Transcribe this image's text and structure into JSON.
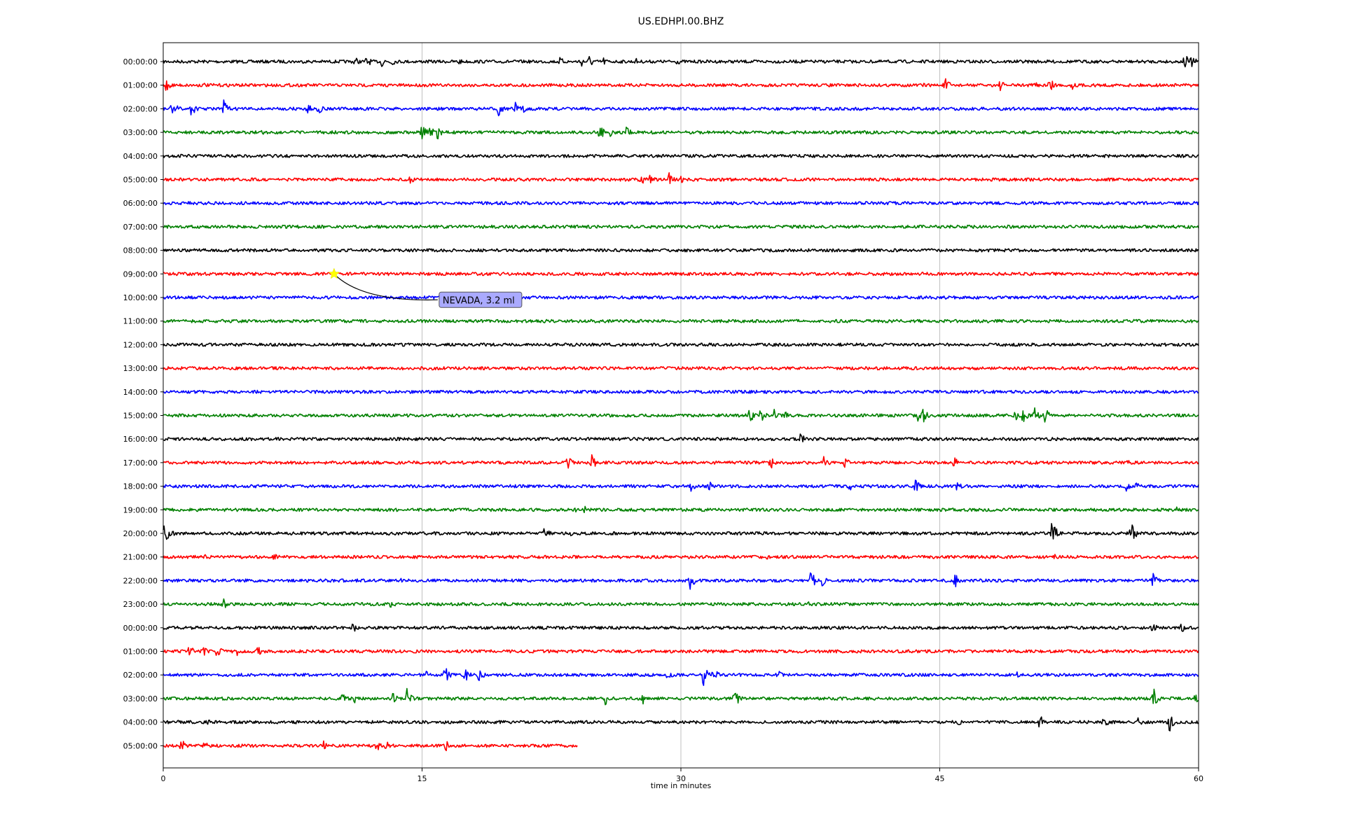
{
  "chart_data": {
    "type": "line",
    "title": "US.EDHPI.00.BHZ",
    "xlabel": "time in minutes",
    "ylabel": "",
    "xlim": [
      0,
      60
    ],
    "x_ticks": [
      "0",
      "15",
      "30",
      "45",
      "60"
    ],
    "grid": "vertical lines at x ticks",
    "color_cycle": [
      "#000000",
      "#ff0000",
      "#0000ff",
      "#008000"
    ],
    "rows": [
      {
        "label": "00:00:00",
        "color": "#000000",
        "end_min": 60,
        "events": [
          {
            "t": 11.1,
            "a": 8
          },
          {
            "t": 11.8,
            "a": 9
          },
          {
            "t": 12.7,
            "a": 10
          },
          {
            "t": 13.2,
            "a": 8
          },
          {
            "t": 17.1,
            "a": 6
          },
          {
            "t": 23.0,
            "a": 7
          },
          {
            "t": 24.2,
            "a": 9
          },
          {
            "t": 24.7,
            "a": 10
          },
          {
            "t": 25.5,
            "a": 7
          },
          {
            "t": 27.4,
            "a": 5
          },
          {
            "t": 29.8,
            "a": 5
          },
          {
            "t": 59.2,
            "a": 12
          },
          {
            "t": 59.6,
            "a": 10
          }
        ]
      },
      {
        "label": "01:00:00",
        "color": "#ff0000",
        "end_min": 60,
        "events": [
          {
            "t": 0.1,
            "a": 14
          },
          {
            "t": 2.4,
            "a": 4
          },
          {
            "t": 44.0,
            "a": 5
          },
          {
            "t": 45.3,
            "a": 12
          },
          {
            "t": 48.5,
            "a": 8
          },
          {
            "t": 50.5,
            "a": 6
          },
          {
            "t": 51.2,
            "a": 12
          },
          {
            "t": 51.5,
            "a": 10
          },
          {
            "t": 52.6,
            "a": 9
          },
          {
            "t": 54.0,
            "a": 5
          }
        ]
      },
      {
        "label": "02:00:00",
        "color": "#0000ff",
        "end_min": 60,
        "events": [
          {
            "t": 0.3,
            "a": 10
          },
          {
            "t": 0.6,
            "a": 12
          },
          {
            "t": 1.6,
            "a": 13
          },
          {
            "t": 3.5,
            "a": 14
          },
          {
            "t": 8.3,
            "a": 10
          },
          {
            "t": 9.0,
            "a": 8
          },
          {
            "t": 19.4,
            "a": 12
          },
          {
            "t": 20.4,
            "a": 10
          },
          {
            "t": 20.9,
            "a": 7
          }
        ]
      },
      {
        "label": "03:00:00",
        "color": "#008000",
        "end_min": 60,
        "events": [
          {
            "t": 5.7,
            "a": 4
          },
          {
            "t": 15.0,
            "a": 12
          },
          {
            "t": 15.5,
            "a": 13
          },
          {
            "t": 15.9,
            "a": 12
          },
          {
            "t": 25.3,
            "a": 12
          },
          {
            "t": 25.9,
            "a": 8
          },
          {
            "t": 26.8,
            "a": 11
          }
        ]
      },
      {
        "label": "04:00:00",
        "color": "#000000",
        "end_min": 60,
        "events": []
      },
      {
        "label": "05:00:00",
        "color": "#ff0000",
        "end_min": 60,
        "events": [
          {
            "t": 14.3,
            "a": 7
          },
          {
            "t": 27.6,
            "a": 14
          },
          {
            "t": 28.2,
            "a": 10
          },
          {
            "t": 29.3,
            "a": 11
          },
          {
            "t": 29.9,
            "a": 8
          }
        ]
      },
      {
        "label": "06:00:00",
        "color": "#0000ff",
        "end_min": 60,
        "events": []
      },
      {
        "label": "07:00:00",
        "color": "#008000",
        "end_min": 60,
        "events": []
      },
      {
        "label": "08:00:00",
        "color": "#000000",
        "end_min": 60,
        "events": [
          {
            "t": 41.8,
            "a": 6
          }
        ]
      },
      {
        "label": "09:00:00",
        "color": "#ff0000",
        "end_min": 60,
        "events": []
      },
      {
        "label": "10:00:00",
        "color": "#0000ff",
        "end_min": 60,
        "events": []
      },
      {
        "label": "11:00:00",
        "color": "#008000",
        "end_min": 60,
        "events": []
      },
      {
        "label": "12:00:00",
        "color": "#000000",
        "end_min": 60,
        "events": []
      },
      {
        "label": "13:00:00",
        "color": "#ff0000",
        "end_min": 60,
        "events": []
      },
      {
        "label": "14:00:00",
        "color": "#0000ff",
        "end_min": 60,
        "events": []
      },
      {
        "label": "15:00:00",
        "color": "#008000",
        "end_min": 60,
        "events": [
          {
            "t": 34.0,
            "a": 14
          },
          {
            "t": 34.6,
            "a": 12
          },
          {
            "t": 35.4,
            "a": 9
          },
          {
            "t": 36.0,
            "a": 7
          },
          {
            "t": 43.7,
            "a": 14
          },
          {
            "t": 44.0,
            "a": 13
          },
          {
            "t": 49.3,
            "a": 11
          },
          {
            "t": 49.8,
            "a": 13
          },
          {
            "t": 50.5,
            "a": 11
          },
          {
            "t": 51.1,
            "a": 12
          }
        ]
      },
      {
        "label": "16:00:00",
        "color": "#000000",
        "end_min": 60,
        "events": [
          {
            "t": 36.9,
            "a": 10
          }
        ]
      },
      {
        "label": "17:00:00",
        "color": "#ff0000",
        "end_min": 60,
        "events": [
          {
            "t": 23.4,
            "a": 12
          },
          {
            "t": 24.8,
            "a": 13
          },
          {
            "t": 35.2,
            "a": 11
          },
          {
            "t": 38.3,
            "a": 12
          },
          {
            "t": 39.5,
            "a": 8
          },
          {
            "t": 45.8,
            "a": 10
          },
          {
            "t": 55.9,
            "a": 4
          }
        ]
      },
      {
        "label": "18:00:00",
        "color": "#0000ff",
        "end_min": 60,
        "events": [
          {
            "t": 30.6,
            "a": 9
          },
          {
            "t": 31.6,
            "a": 10
          },
          {
            "t": 39.8,
            "a": 7
          },
          {
            "t": 43.6,
            "a": 10
          },
          {
            "t": 44.9,
            "a": 7
          },
          {
            "t": 46.0,
            "a": 8
          },
          {
            "t": 55.8,
            "a": 10
          },
          {
            "t": 56.4,
            "a": 7
          }
        ]
      },
      {
        "label": "19:00:00",
        "color": "#008000",
        "end_min": 60,
        "events": [
          {
            "t": 23.8,
            "a": 6
          },
          {
            "t": 24.4,
            "a": 8
          },
          {
            "t": 58.7,
            "a": 5
          }
        ]
      },
      {
        "label": "20:00:00",
        "color": "#000000",
        "end_min": 60,
        "events": [
          {
            "t": 0.1,
            "a": 18
          },
          {
            "t": 0.3,
            "a": 12
          },
          {
            "t": 22.1,
            "a": 14
          },
          {
            "t": 23.6,
            "a": 6
          },
          {
            "t": 51.5,
            "a": 20
          },
          {
            "t": 56.1,
            "a": 18
          }
        ]
      },
      {
        "label": "21:00:00",
        "color": "#ff0000",
        "end_min": 60,
        "events": [
          {
            "t": 2.4,
            "a": 5
          },
          {
            "t": 6.4,
            "a": 10
          },
          {
            "t": 35.0,
            "a": 4
          },
          {
            "t": 51.6,
            "a": 5
          }
        ]
      },
      {
        "label": "22:00:00",
        "color": "#0000ff",
        "end_min": 60,
        "events": [
          {
            "t": 13.7,
            "a": 5
          },
          {
            "t": 30.5,
            "a": 16
          },
          {
            "t": 37.5,
            "a": 17
          },
          {
            "t": 38.2,
            "a": 10
          },
          {
            "t": 45.9,
            "a": 10
          },
          {
            "t": 57.3,
            "a": 14
          }
        ]
      },
      {
        "label": "23:00:00",
        "color": "#008000",
        "end_min": 60,
        "events": [
          {
            "t": 3.5,
            "a": 8
          },
          {
            "t": 13.2,
            "a": 7
          },
          {
            "t": 37.4,
            "a": 6
          }
        ]
      },
      {
        "label": "00:00:00",
        "color": "#000000",
        "end_min": 60,
        "events": [
          {
            "t": 11.0,
            "a": 9
          },
          {
            "t": 57.3,
            "a": 10
          },
          {
            "t": 59.0,
            "a": 10
          }
        ]
      },
      {
        "label": "01:00:00",
        "color": "#ff0000",
        "end_min": 60,
        "events": [
          {
            "t": 1.5,
            "a": 10
          },
          {
            "t": 2.2,
            "a": 14
          },
          {
            "t": 3.1,
            "a": 11
          },
          {
            "t": 4.3,
            "a": 7
          },
          {
            "t": 5.5,
            "a": 8
          }
        ]
      },
      {
        "label": "02:00:00",
        "color": "#0000ff",
        "end_min": 60,
        "events": [
          {
            "t": 15.3,
            "a": 10
          },
          {
            "t": 16.3,
            "a": 14
          },
          {
            "t": 17.5,
            "a": 11
          },
          {
            "t": 18.3,
            "a": 10
          },
          {
            "t": 29.2,
            "a": 9
          },
          {
            "t": 31.3,
            "a": 16
          },
          {
            "t": 31.9,
            "a": 11
          },
          {
            "t": 35.6,
            "a": 8
          },
          {
            "t": 49.5,
            "a": 6
          }
        ]
      },
      {
        "label": "03:00:00",
        "color": "#008000",
        "end_min": 60,
        "events": [
          {
            "t": 10.4,
            "a": 10
          },
          {
            "t": 11.1,
            "a": 8
          },
          {
            "t": 13.3,
            "a": 9
          },
          {
            "t": 14.1,
            "a": 16
          },
          {
            "t": 25.6,
            "a": 11
          },
          {
            "t": 27.8,
            "a": 9
          },
          {
            "t": 33.1,
            "a": 16
          },
          {
            "t": 57.4,
            "a": 16
          },
          {
            "t": 59.8,
            "a": 8
          }
        ]
      },
      {
        "label": "04:00:00",
        "color": "#000000",
        "end_min": 60,
        "events": [
          {
            "t": 0.8,
            "a": 5
          },
          {
            "t": 2.6,
            "a": 6
          },
          {
            "t": 7.7,
            "a": 4
          },
          {
            "t": 46.1,
            "a": 6
          },
          {
            "t": 50.8,
            "a": 12
          },
          {
            "t": 54.5,
            "a": 10
          },
          {
            "t": 56.5,
            "a": 8
          },
          {
            "t": 58.3,
            "a": 16
          }
        ]
      },
      {
        "label": "05:00:00",
        "color": "#ff0000",
        "end_min": 24,
        "events": [
          {
            "t": 1.0,
            "a": 12
          },
          {
            "t": 2.4,
            "a": 7
          },
          {
            "t": 9.3,
            "a": 7
          },
          {
            "t": 12.4,
            "a": 11
          },
          {
            "t": 12.9,
            "a": 9
          },
          {
            "t": 16.3,
            "a": 12
          }
        ]
      }
    ],
    "annotations": [
      {
        "text": "NEVADA, 3.2 ml",
        "row_index": 9,
        "t": 9.9,
        "marker": "star",
        "marker_color": "#ffff00",
        "box_fill": "#aaaaff"
      }
    ]
  }
}
